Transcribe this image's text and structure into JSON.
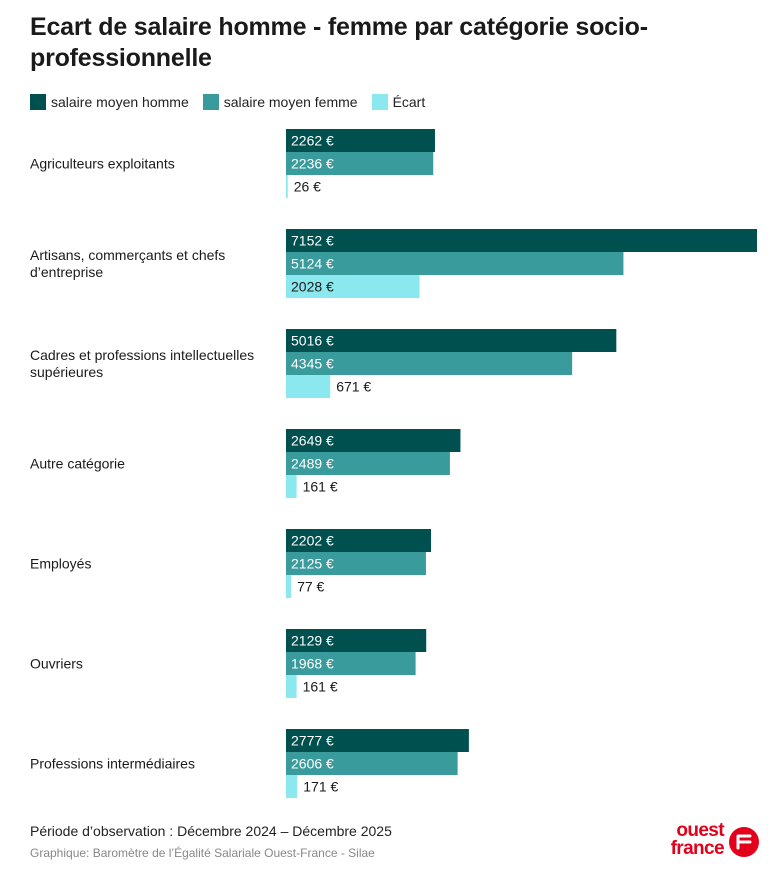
{
  "chart_data": {
    "type": "bar",
    "orientation": "horizontal",
    "title": "Ecart de salaire homme - femme par catégorie socio-professionnelle",
    "categories": [
      "Agriculteurs exploitants",
      "Artisans, commerçants et chefs d’entreprise",
      "Cadres et professions intellectuelles supérieures",
      "Autre catégorie",
      "Employés",
      "Ouvriers",
      "Professions intermédiaires"
    ],
    "series": [
      {
        "name": "salaire moyen homme",
        "color": "#00504f",
        "values": [
          2262,
          7152,
          5016,
          2649,
          2202,
          2129,
          2777
        ]
      },
      {
        "name": "salaire moyen femme",
        "color": "#3a9b9c",
        "values": [
          2236,
          5124,
          4345,
          2489,
          2125,
          1968,
          2606
        ]
      },
      {
        "name": "Écart",
        "color": "#8ae8ee",
        "values": [
          26,
          2028,
          671,
          161,
          77,
          161,
          171
        ]
      }
    ],
    "value_suffix": " €",
    "xlim": [
      0,
      7152
    ],
    "legend_position": "top-left",
    "grid": false
  },
  "footer": {
    "observation": "Période d’observation : Décembre 2024 – Décembre 2025",
    "source": "Graphique: Baromètre de l’Égalité Salariale Ouest-France - Silae"
  },
  "logo": {
    "line1": "ouest",
    "line2": "france",
    "color": "#e2001a"
  }
}
